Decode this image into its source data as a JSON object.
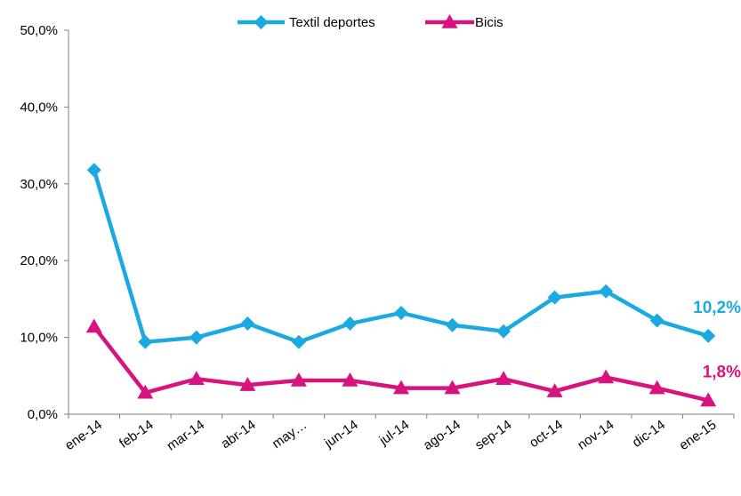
{
  "chart_data": {
    "type": "line",
    "categories": [
      "ene-14",
      "feb-14",
      "mar-14",
      "abr-14",
      "may…",
      "jun-14",
      "jul-14",
      "ago-14",
      "sep-14",
      "oct-14",
      "nov-14",
      "dic-14",
      "ene-15"
    ],
    "series": [
      {
        "name": "Textil deportes",
        "color": "#1aaae0",
        "marker": "diamond",
        "values": [
          31.8,
          9.4,
          10.0,
          11.8,
          9.4,
          11.8,
          13.2,
          11.6,
          10.8,
          15.2,
          16.0,
          12.2,
          10.2
        ],
        "end_label": "10,2%"
      },
      {
        "name": "Bicis",
        "color": "#d8137f",
        "marker": "triangle",
        "values": [
          11.4,
          2.8,
          4.6,
          3.8,
          4.4,
          4.4,
          3.4,
          3.4,
          4.6,
          3.0,
          4.8,
          3.4,
          1.8
        ],
        "end_label": "1,8%"
      }
    ],
    "yticks": [
      "0,0%",
      "10,0%",
      "20,0%",
      "30,0%",
      "40,0%",
      "50,0%"
    ],
    "ylim": [
      0,
      50
    ],
    "grid": false,
    "legend_position": "top-center"
  }
}
